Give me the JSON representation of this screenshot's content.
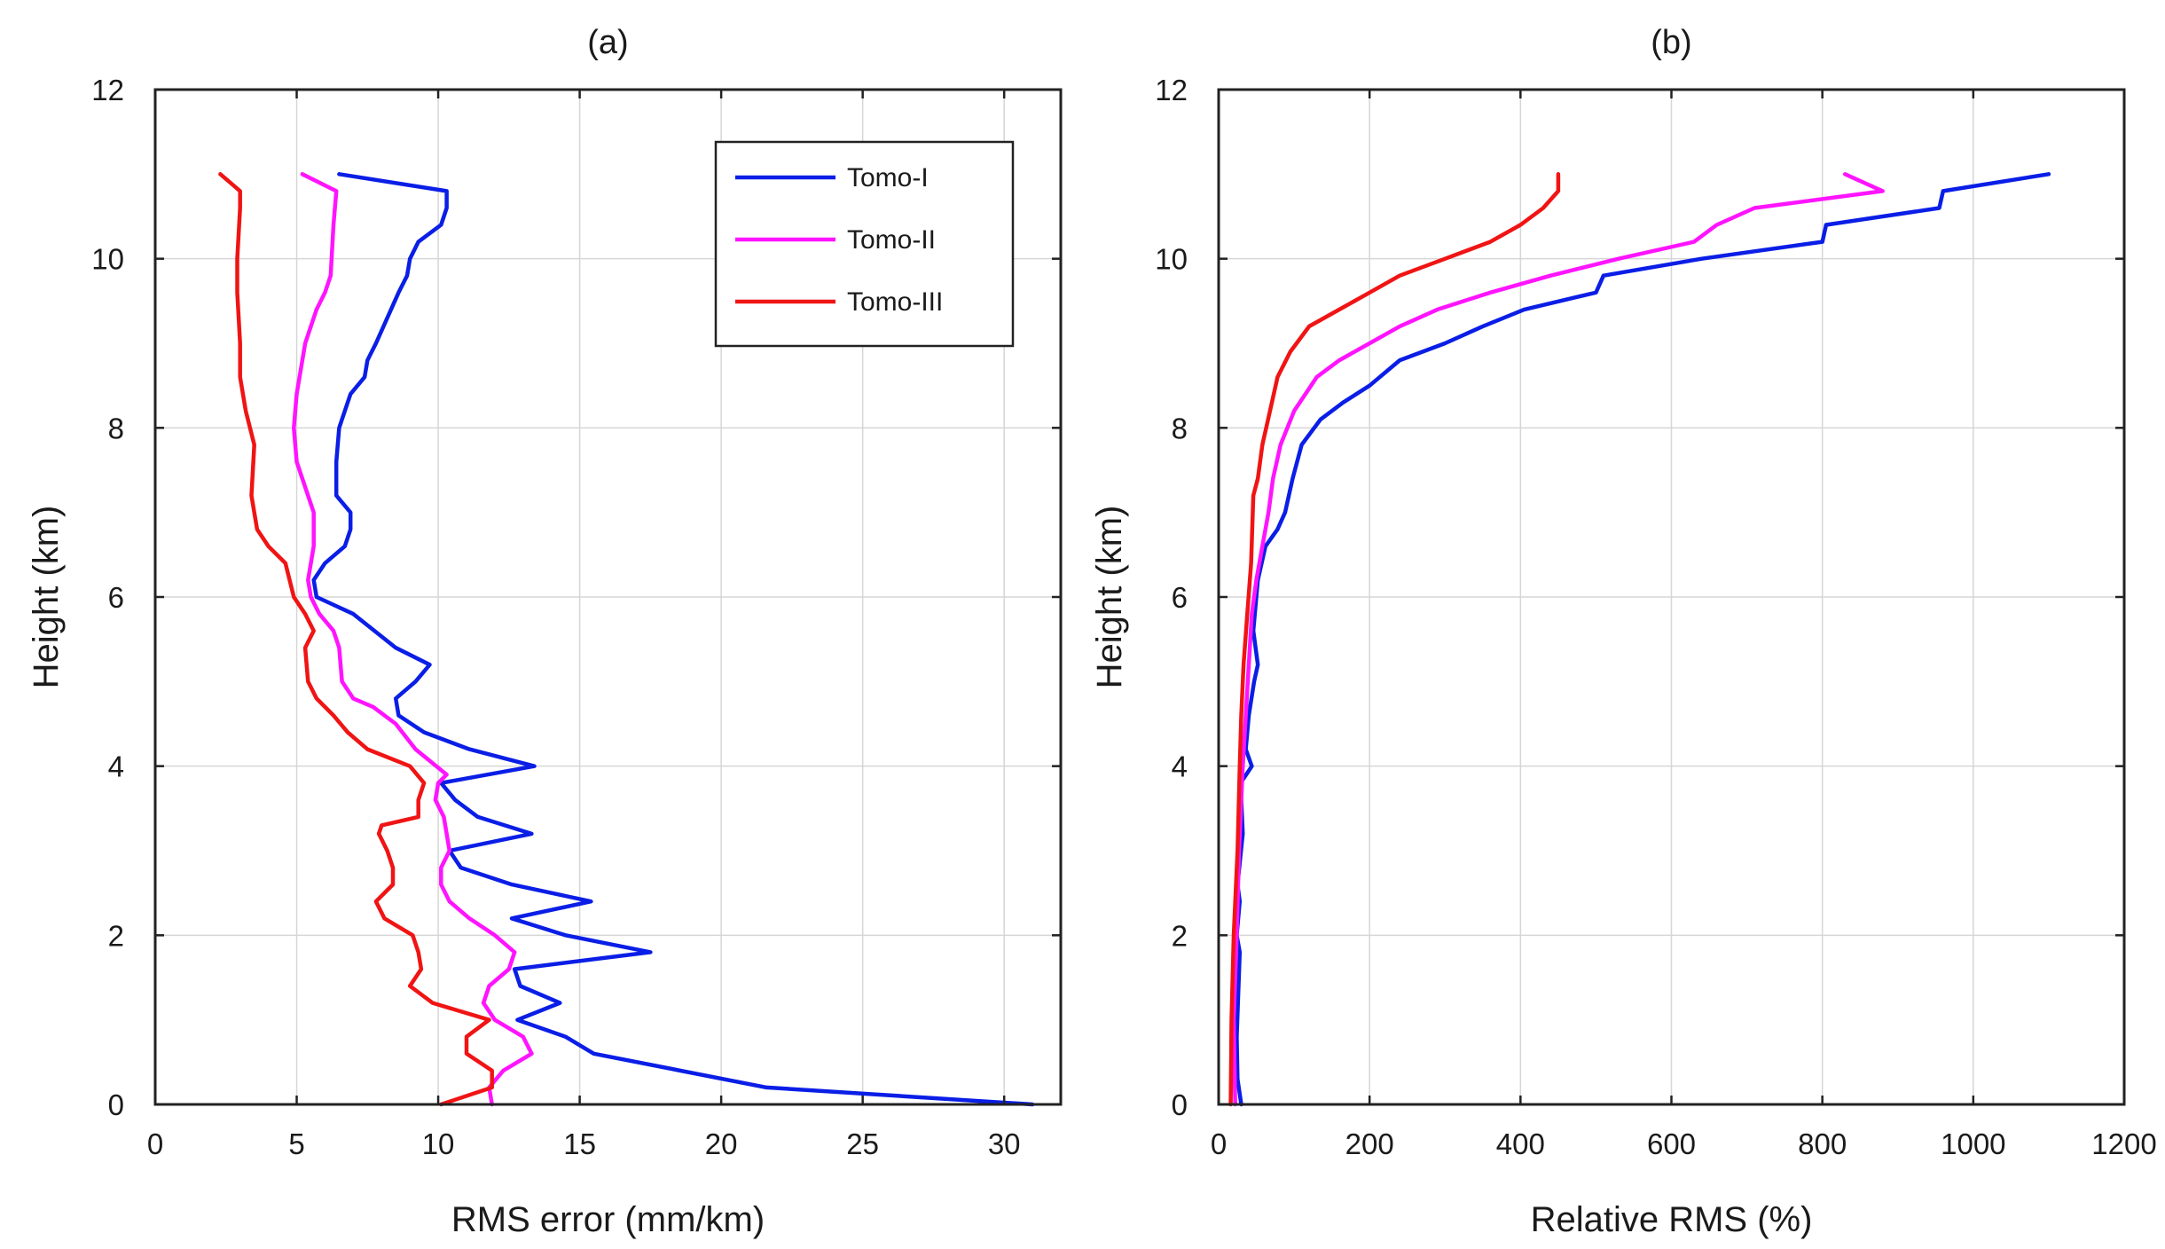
{
  "chart_data": [
    {
      "type": "line",
      "title": "(a)",
      "xlabel": "RMS error (mm/km)",
      "ylabel": "Height (km)",
      "xlim": [
        0,
        32
      ],
      "ylim": [
        0,
        12
      ],
      "xticks": [
        0,
        5,
        10,
        15,
        20,
        25,
        30
      ],
      "yticks": [
        0,
        2,
        4,
        6,
        8,
        10,
        12
      ],
      "grid": true,
      "legend_position": "top-right",
      "series": [
        {
          "name": "Tomo-I",
          "color": "#0a1ee6",
          "points": [
            [
              31,
              0
            ],
            [
              21.6,
              0.2
            ],
            [
              15.5,
              0.6
            ],
            [
              14.5,
              0.8
            ],
            [
              12.8,
              1.0
            ],
            [
              14.3,
              1.2
            ],
            [
              12.9,
              1.4
            ],
            [
              12.7,
              1.6
            ],
            [
              17.5,
              1.8
            ],
            [
              14.5,
              2.0
            ],
            [
              12.6,
              2.2
            ],
            [
              15.4,
              2.4
            ],
            [
              12.6,
              2.6
            ],
            [
              10.8,
              2.8
            ],
            [
              10.4,
              3.0
            ],
            [
              13.3,
              3.2
            ],
            [
              11.4,
              3.4
            ],
            [
              10.6,
              3.6
            ],
            [
              10.1,
              3.8
            ],
            [
              13.4,
              4.0
            ],
            [
              11.1,
              4.2
            ],
            [
              9.5,
              4.4
            ],
            [
              8.6,
              4.6
            ],
            [
              8.5,
              4.8
            ],
            [
              9.2,
              5.0
            ],
            [
              9.7,
              5.2
            ],
            [
              8.5,
              5.4
            ],
            [
              7.0,
              5.8
            ],
            [
              5.7,
              6.0
            ],
            [
              5.6,
              6.2
            ],
            [
              6.0,
              6.4
            ],
            [
              6.7,
              6.6
            ],
            [
              6.9,
              6.8
            ],
            [
              6.9,
              7.0
            ],
            [
              6.4,
              7.2
            ],
            [
              6.4,
              7.6
            ],
            [
              6.5,
              8.0
            ],
            [
              6.9,
              8.4
            ],
            [
              7.4,
              8.6
            ],
            [
              7.5,
              8.8
            ],
            [
              7.8,
              9.0
            ],
            [
              8.6,
              9.6
            ],
            [
              8.9,
              9.8
            ],
            [
              9.0,
              10.0
            ],
            [
              9.3,
              10.2
            ],
            [
              10.1,
              10.4
            ],
            [
              10.3,
              10.6
            ],
            [
              10.3,
              10.8
            ],
            [
              6.5,
              11.0
            ]
          ]
        },
        {
          "name": "Tomo-II",
          "color": "#ff14ff",
          "points": [
            [
              11.9,
              0
            ],
            [
              11.8,
              0.2
            ],
            [
              12.3,
              0.4
            ],
            [
              13.3,
              0.6
            ],
            [
              13.0,
              0.8
            ],
            [
              12.0,
              1.0
            ],
            [
              11.6,
              1.2
            ],
            [
              11.8,
              1.4
            ],
            [
              12.5,
              1.6
            ],
            [
              12.7,
              1.8
            ],
            [
              12.0,
              2.0
            ],
            [
              11.1,
              2.2
            ],
            [
              10.4,
              2.4
            ],
            [
              10.1,
              2.6
            ],
            [
              10.1,
              2.8
            ],
            [
              10.4,
              3.0
            ],
            [
              10.2,
              3.4
            ],
            [
              9.9,
              3.6
            ],
            [
              10.0,
              3.8
            ],
            [
              10.3,
              3.9
            ],
            [
              9.2,
              4.2
            ],
            [
              8.5,
              4.5
            ],
            [
              7.7,
              4.7
            ],
            [
              7.0,
              4.8
            ],
            [
              6.6,
              5.0
            ],
            [
              6.5,
              5.4
            ],
            [
              6.3,
              5.6
            ],
            [
              5.8,
              5.8
            ],
            [
              5.5,
              6.0
            ],
            [
              5.4,
              6.2
            ],
            [
              5.5,
              6.4
            ],
            [
              5.6,
              6.6
            ],
            [
              5.6,
              7.0
            ],
            [
              5.3,
              7.3
            ],
            [
              5.0,
              7.6
            ],
            [
              4.9,
              8.0
            ],
            [
              5.0,
              8.4
            ],
            [
              5.3,
              9.0
            ],
            [
              5.7,
              9.4
            ],
            [
              6.0,
              9.6
            ],
            [
              6.2,
              9.8
            ],
            [
              6.3,
              10.4
            ],
            [
              6.4,
              10.8
            ],
            [
              5.2,
              11.0
            ]
          ]
        },
        {
          "name": "Tomo-III",
          "color": "#f01414",
          "points": [
            [
              10.1,
              0
            ],
            [
              11.9,
              0.2
            ],
            [
              11.9,
              0.4
            ],
            [
              11.0,
              0.6
            ],
            [
              11.0,
              0.8
            ],
            [
              11.8,
              1.0
            ],
            [
              9.8,
              1.2
            ],
            [
              9.0,
              1.4
            ],
            [
              9.4,
              1.6
            ],
            [
              9.3,
              1.8
            ],
            [
              9.1,
              2.0
            ],
            [
              8.1,
              2.2
            ],
            [
              7.8,
              2.4
            ],
            [
              8.4,
              2.6
            ],
            [
              8.4,
              2.8
            ],
            [
              8.2,
              3.0
            ],
            [
              7.9,
              3.2
            ],
            [
              8.0,
              3.3
            ],
            [
              9.3,
              3.4
            ],
            [
              9.3,
              3.6
            ],
            [
              9.5,
              3.8
            ],
            [
              9.0,
              4.0
            ],
            [
              7.5,
              4.2
            ],
            [
              6.8,
              4.4
            ],
            [
              6.3,
              4.6
            ],
            [
              5.7,
              4.8
            ],
            [
              5.4,
              5.0
            ],
            [
              5.3,
              5.4
            ],
            [
              5.6,
              5.6
            ],
            [
              5.3,
              5.8
            ],
            [
              4.9,
              6.0
            ],
            [
              4.6,
              6.4
            ],
            [
              4.0,
              6.6
            ],
            [
              3.6,
              6.8
            ],
            [
              3.5,
              7.0
            ],
            [
              3.4,
              7.2
            ],
            [
              3.5,
              7.8
            ],
            [
              3.2,
              8.2
            ],
            [
              3.0,
              8.6
            ],
            [
              3.0,
              9.0
            ],
            [
              2.9,
              9.6
            ],
            [
              2.9,
              10.0
            ],
            [
              3.0,
              10.6
            ],
            [
              3.0,
              10.8
            ],
            [
              2.3,
              11.0
            ]
          ]
        }
      ]
    },
    {
      "type": "line",
      "title": "(b)",
      "xlabel": "Relative RMS (%)",
      "ylabel": "Height (km)",
      "xlim": [
        0,
        1200
      ],
      "ylim": [
        0,
        12
      ],
      "xticks": [
        0,
        200,
        400,
        600,
        800,
        1000,
        1200
      ],
      "yticks": [
        0,
        2,
        4,
        6,
        8,
        10,
        12
      ],
      "grid": true,
      "series": [
        {
          "name": "Tomo-I",
          "color": "#0a1ee6",
          "points": [
            [
              30,
              0
            ],
            [
              25,
              0.3
            ],
            [
              24,
              0.8
            ],
            [
              28,
              1.8
            ],
            [
              24,
              2.0
            ],
            [
              28,
              2.4
            ],
            [
              25,
              2.6
            ],
            [
              32,
              3.2
            ],
            [
              29,
              3.8
            ],
            [
              44,
              4.0
            ],
            [
              36,
              4.2
            ],
            [
              40,
              4.6
            ],
            [
              47,
              5.0
            ],
            [
              52,
              5.2
            ],
            [
              46,
              5.6
            ],
            [
              50,
              6.0
            ],
            [
              52,
              6.2
            ],
            [
              62,
              6.6
            ],
            [
              78,
              6.8
            ],
            [
              88,
              7.0
            ],
            [
              98,
              7.4
            ],
            [
              110,
              7.8
            ],
            [
              135,
              8.1
            ],
            [
              165,
              8.3
            ],
            [
              200,
              8.5
            ],
            [
              240,
              8.8
            ],
            [
              300,
              9.0
            ],
            [
              350,
              9.2
            ],
            [
              405,
              9.4
            ],
            [
              500,
              9.6
            ],
            [
              510,
              9.8
            ],
            [
              640,
              10.0
            ],
            [
              800,
              10.2
            ],
            [
              805,
              10.4
            ],
            [
              955,
              10.6
            ],
            [
              960,
              10.8
            ],
            [
              1100,
              11.0
            ]
          ]
        },
        {
          "name": "Tomo-II",
          "color": "#ff14ff",
          "points": [
            [
              22,
              0
            ],
            [
              20,
              1.0
            ],
            [
              24,
              2.0
            ],
            [
              27,
              3.0
            ],
            [
              32,
              4.0
            ],
            [
              36,
              4.6
            ],
            [
              40,
              5.2
            ],
            [
              44,
              5.8
            ],
            [
              50,
              6.2
            ],
            [
              58,
              6.6
            ],
            [
              66,
              7.0
            ],
            [
              72,
              7.4
            ],
            [
              82,
              7.8
            ],
            [
              100,
              8.2
            ],
            [
              130,
              8.6
            ],
            [
              160,
              8.8
            ],
            [
              200,
              9.0
            ],
            [
              240,
              9.2
            ],
            [
              290,
              9.4
            ],
            [
              360,
              9.6
            ],
            [
              440,
              9.8
            ],
            [
              530,
              10.0
            ],
            [
              630,
              10.2
            ],
            [
              660,
              10.4
            ],
            [
              710,
              10.6
            ],
            [
              880,
              10.8
            ],
            [
              830,
              11.0
            ]
          ]
        },
        {
          "name": "Tomo-III",
          "color": "#f01414",
          "points": [
            [
              16,
              0
            ],
            [
              17,
              1.0
            ],
            [
              20,
              2.0
            ],
            [
              25,
              3.0
            ],
            [
              28,
              4.0
            ],
            [
              30,
              4.6
            ],
            [
              33,
              5.2
            ],
            [
              38,
              5.8
            ],
            [
              43,
              6.4
            ],
            [
              46,
              7.2
            ],
            [
              52,
              7.4
            ],
            [
              58,
              7.8
            ],
            [
              68,
              8.2
            ],
            [
              78,
              8.6
            ],
            [
              95,
              8.9
            ],
            [
              120,
              9.2
            ],
            [
              160,
              9.4
            ],
            [
              200,
              9.6
            ],
            [
              240,
              9.8
            ],
            [
              300,
              10.0
            ],
            [
              360,
              10.2
            ],
            [
              400,
              10.4
            ],
            [
              430,
              10.6
            ],
            [
              450,
              10.8
            ],
            [
              450,
              11.0
            ]
          ]
        }
      ]
    }
  ]
}
